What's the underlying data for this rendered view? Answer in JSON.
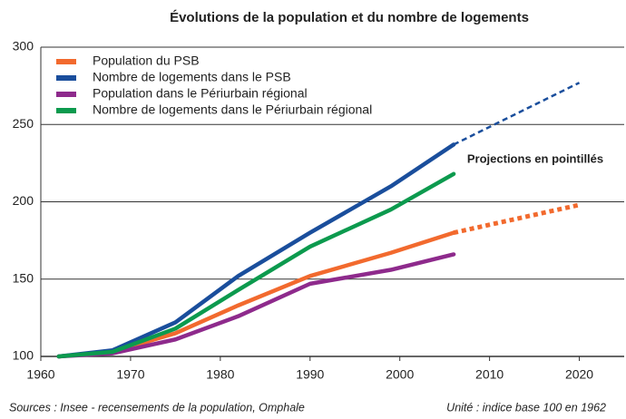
{
  "chart_data": {
    "type": "line",
    "title": "Évolutions de la population et du nombre de logements",
    "x": [
      1962,
      1968,
      1975,
      1982,
      1990,
      1999,
      2006
    ],
    "projection_x": [
      2006,
      2020
    ],
    "series": [
      {
        "name": "Population du PSB",
        "color": "#f26a2e",
        "values": [
          100,
          103,
          115,
          133,
          152,
          167,
          180
        ],
        "projection": [
          180,
          198
        ]
      },
      {
        "name": "Nombre de logements dans le PSB",
        "color": "#1a4e9c",
        "values": [
          100,
          104,
          122,
          152,
          180,
          210,
          237
        ],
        "projection": [
          237,
          277
        ]
      },
      {
        "name": "Population dans le Périurbain régional",
        "color": "#8e2a8c",
        "values": [
          100,
          102,
          111,
          126,
          147,
          156,
          166
        ]
      },
      {
        "name": "Nombre de logements dans le Périurbain régional",
        "color": "#0c9a4e",
        "values": [
          100,
          103,
          118,
          143,
          171,
          195,
          218
        ]
      }
    ],
    "annotation": "Projections en pointillés",
    "source": "Sources : Insee - recensements de la population, Omphale",
    "unit": "Unité : indice base 100 en 1962",
    "xlim": [
      1960,
      2025
    ],
    "xticks": [
      1960,
      1970,
      1980,
      1990,
      2000,
      2010,
      2020
    ],
    "ylim": [
      100,
      300
    ],
    "yticks": [
      100,
      150,
      200,
      250,
      300
    ],
    "grid": true
  }
}
